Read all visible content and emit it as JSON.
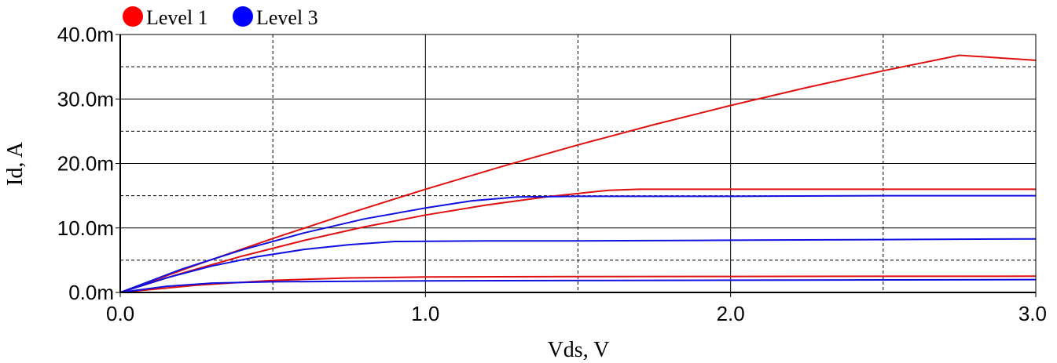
{
  "chart_data": {
    "type": "line",
    "xlabel": "Vds, V",
    "ylabel": "Id, A",
    "xlim": [
      0,
      3
    ],
    "ylim": [
      0,
      0.04
    ],
    "x_ticks": [
      {
        "value": 0,
        "label": "0.0"
      },
      {
        "value": 1,
        "label": "1.0"
      },
      {
        "value": 2,
        "label": "2.0"
      },
      {
        "value": 3,
        "label": "3.0"
      }
    ],
    "y_ticks": [
      {
        "value": 0,
        "label": "0.0m"
      },
      {
        "value": 0.01,
        "label": "10.0m"
      },
      {
        "value": 0.02,
        "label": "20.0m"
      },
      {
        "value": 0.03,
        "label": "30.0m"
      },
      {
        "value": 0.04,
        "label": "40.0m"
      }
    ],
    "x_minor_grid": [
      0.5,
      1.5,
      2.5
    ],
    "y_minor_grid": [
      0.005,
      0.015,
      0.025,
      0.035
    ],
    "grid": true,
    "legend": {
      "placement": "top-left",
      "entries": [
        {
          "label": "Level 1",
          "color": "#ff0000"
        },
        {
          "label": "Level 3",
          "color": "#0000ff"
        }
      ]
    },
    "series": [
      {
        "group": 0,
        "color": "#e01010",
        "points": [
          [
            0,
            0
          ],
          [
            0.25,
            0.00112
          ],
          [
            0.5,
            0.00187
          ],
          [
            0.75,
            0.00225
          ],
          [
            1.0,
            0.0024
          ],
          [
            1.5,
            0.00245
          ],
          [
            2.0,
            0.00248
          ],
          [
            2.5,
            0.0025
          ],
          [
            3.0,
            0.00252
          ]
        ]
      },
      {
        "group": 0,
        "color": "#e01010",
        "points": [
          [
            0,
            0
          ],
          [
            0.2,
            0.00296
          ],
          [
            0.4,
            0.00564
          ],
          [
            0.6,
            0.00804
          ],
          [
            0.8,
            0.01016
          ],
          [
            1.0,
            0.012
          ],
          [
            1.2,
            0.01356
          ],
          [
            1.4,
            0.01484
          ],
          [
            1.6,
            0.01584
          ],
          [
            1.7,
            0.016
          ],
          [
            2.0,
            0.016
          ],
          [
            2.5,
            0.016
          ],
          [
            3.0,
            0.016
          ]
        ]
      },
      {
        "group": 0,
        "color": "#e01010",
        "points": [
          [
            0,
            0
          ],
          [
            0.25,
            0.00428
          ],
          [
            0.5,
            0.00837
          ],
          [
            0.75,
            0.01227
          ],
          [
            1.0,
            0.016
          ],
          [
            1.25,
            0.01953
          ],
          [
            1.5,
            0.02288
          ],
          [
            1.75,
            0.02603
          ],
          [
            2.0,
            0.029
          ],
          [
            2.25,
            0.03178
          ],
          [
            2.5,
            0.03437
          ],
          [
            2.75,
            0.03678
          ],
          [
            3.0,
            0.036
          ]
        ]
      },
      {
        "group": 1,
        "color": "#1010e0",
        "points": [
          [
            0,
            0
          ],
          [
            0.15,
            0.00095
          ],
          [
            0.3,
            0.00145
          ],
          [
            0.5,
            0.00165
          ],
          [
            1.0,
            0.0018
          ],
          [
            1.5,
            0.00185
          ],
          [
            2.0,
            0.0019
          ],
          [
            2.5,
            0.00195
          ],
          [
            3.0,
            0.002
          ]
        ]
      },
      {
        "group": 1,
        "color": "#1010e0",
        "points": [
          [
            0,
            0
          ],
          [
            0.15,
            0.00225
          ],
          [
            0.3,
            0.0041
          ],
          [
            0.45,
            0.00555
          ],
          [
            0.6,
            0.00665
          ],
          [
            0.75,
            0.0074
          ],
          [
            0.9,
            0.0079
          ],
          [
            1.2,
            0.008
          ],
          [
            1.5,
            0.008
          ],
          [
            2.0,
            0.0081
          ],
          [
            2.5,
            0.0082
          ],
          [
            3.0,
            0.0083
          ]
        ]
      },
      {
        "group": 1,
        "color": "#1010e0",
        "points": [
          [
            0,
            0
          ],
          [
            0.2,
            0.0036
          ],
          [
            0.4,
            0.0066
          ],
          [
            0.6,
            0.0092
          ],
          [
            0.8,
            0.0114
          ],
          [
            1.0,
            0.0131
          ],
          [
            1.15,
            0.0142
          ],
          [
            1.3,
            0.0148
          ],
          [
            1.5,
            0.0149
          ],
          [
            2.0,
            0.0149
          ],
          [
            2.5,
            0.015
          ],
          [
            3.0,
            0.015
          ]
        ]
      }
    ]
  }
}
